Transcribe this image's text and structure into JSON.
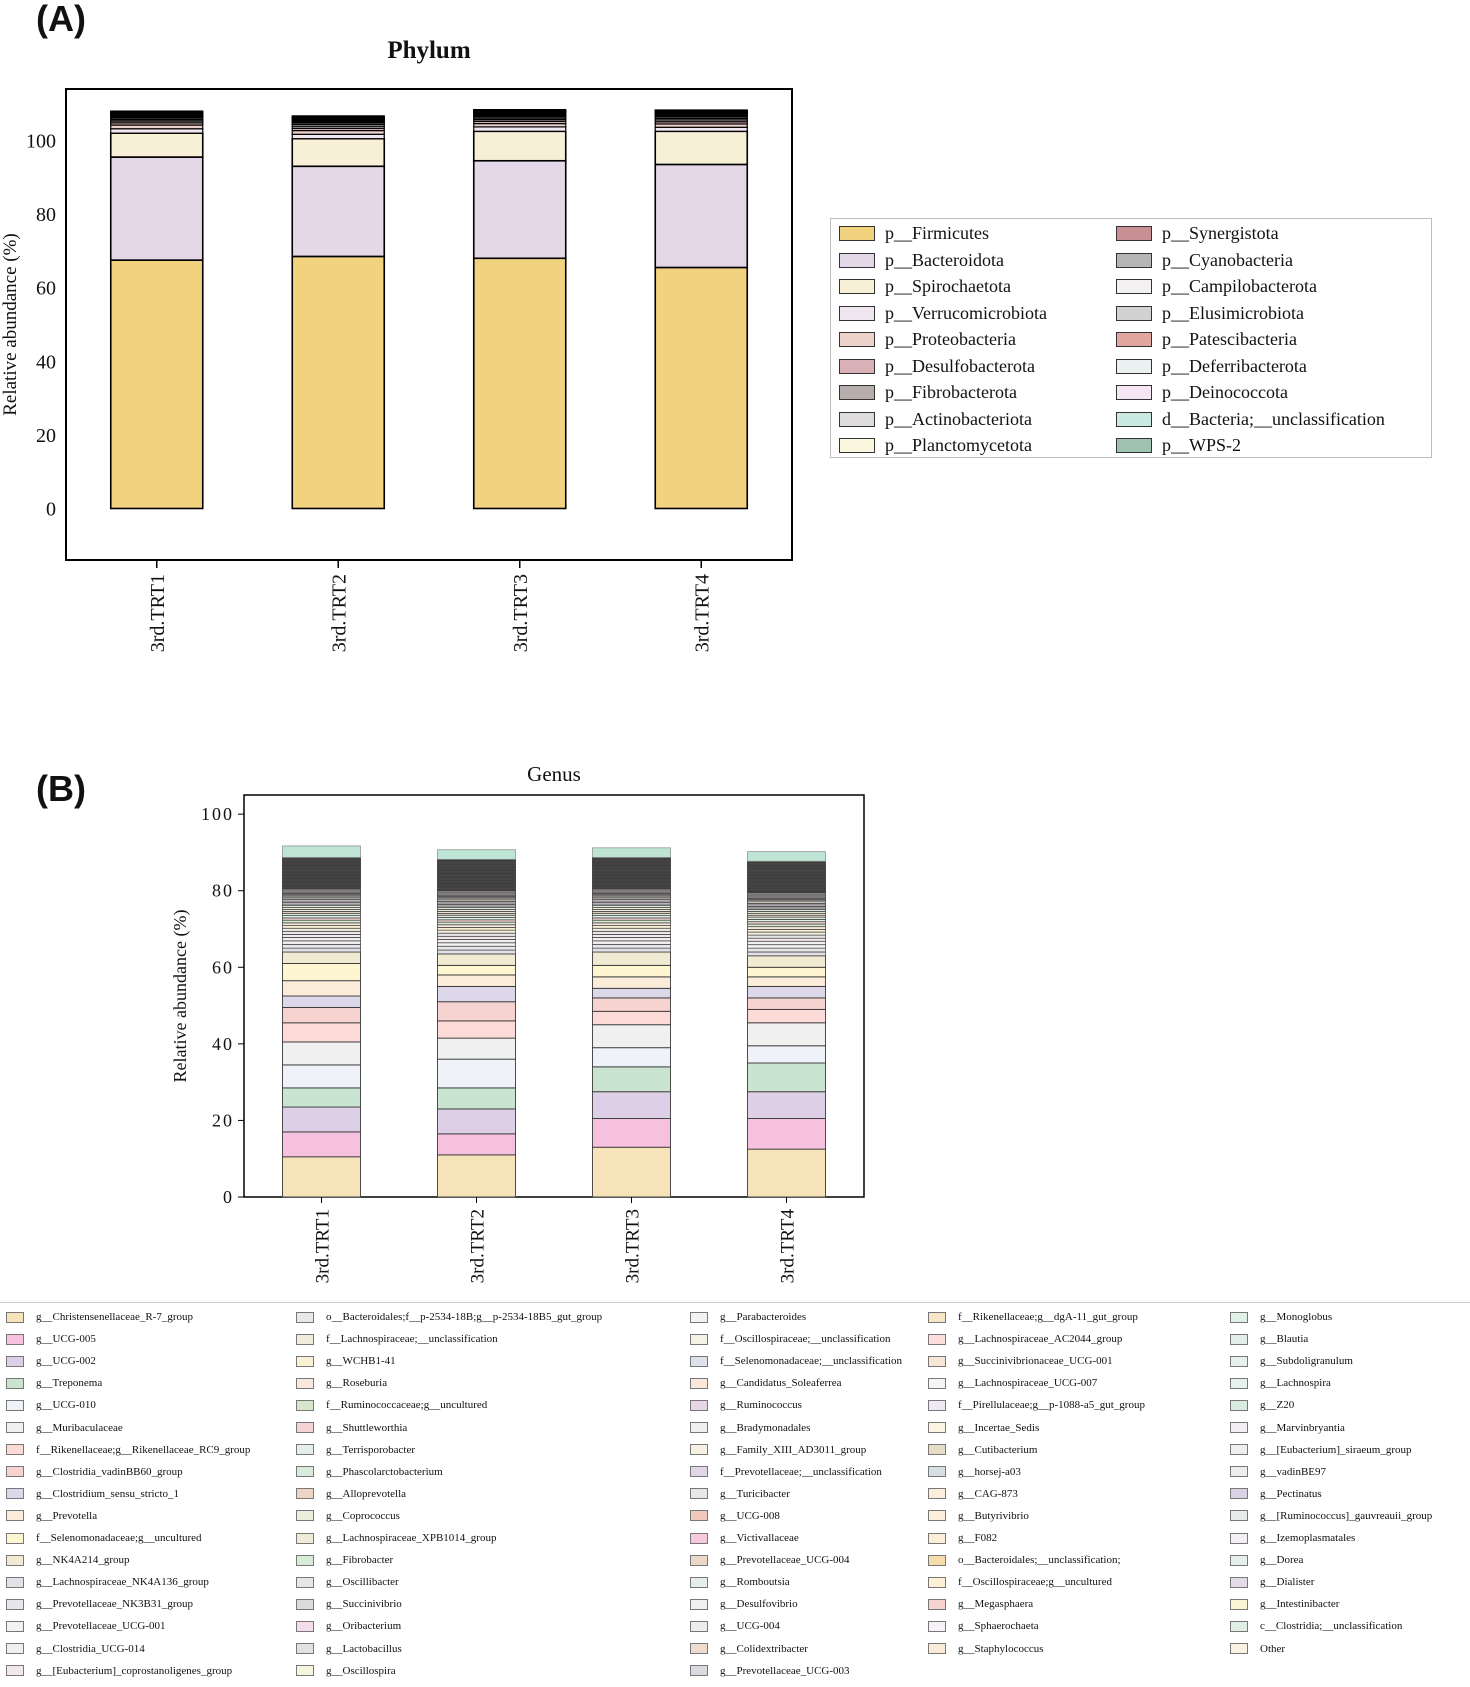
{
  "panel_a_label": "(A)",
  "panel_b_label": "(B)",
  "chart_data": [
    {
      "type": "bar",
      "stacked": true,
      "title": "Phylum",
      "ylabel": "Relative abundance (%)",
      "xlabel": "",
      "ylim": [
        -14,
        114
      ],
      "yticks": [
        0,
        20,
        40,
        60,
        80,
        100
      ],
      "categories": [
        "3rd.TRT1",
        "3rd.TRT2",
        "3rd.TRT3",
        "3rd.TRT4"
      ],
      "legend_position": "right",
      "colors": [
        "#f1d27f",
        "#e3d7e8",
        "#f7efd6",
        "#f0e6ef",
        "#ecd2ca",
        "#d9b0b6",
        "#b8aeae",
        "#dedcdc",
        "#fbf7de",
        "#c88f94",
        "#b5b5b5",
        "#f3f1f1",
        "#d2d2d2",
        "#e1a79f",
        "#eaf2f1",
        "#f5e6f3",
        "#c9e9e1",
        "#9fc2ae"
      ],
      "series": [
        {
          "name": "p__Firmicutes",
          "values": [
            67.5,
            68.5,
            68.0,
            65.5
          ]
        },
        {
          "name": "p__Bacteroidota",
          "values": [
            28.0,
            24.5,
            26.5,
            28.0
          ]
        },
        {
          "name": "p__Spirochaetota",
          "values": [
            6.5,
            7.5,
            8.0,
            9.0
          ]
        },
        {
          "name": "p__Verrucomicrobiota",
          "values": [
            1.2,
            1.2,
            1.2,
            1.1
          ]
        },
        {
          "name": "p__Proteobacteria",
          "values": [
            1.0,
            1.0,
            0.9,
            0.9
          ]
        },
        {
          "name": "p__Desulfobacterota",
          "values": [
            0.6,
            0.6,
            0.6,
            0.6
          ]
        },
        {
          "name": "p__Fibrobacterota",
          "values": [
            0.5,
            0.6,
            0.5,
            0.5
          ]
        },
        {
          "name": "p__Actinobacteriota",
          "values": [
            0.4,
            0.5,
            0.4,
            0.4
          ]
        },
        {
          "name": "p__Planctomycetota",
          "values": [
            0.4,
            0.4,
            0.4,
            0.4
          ]
        },
        {
          "name": "p__Synergistota",
          "values": [
            0.3,
            0.3,
            0.3,
            0.3
          ]
        },
        {
          "name": "p__Cyanobacteria",
          "values": [
            0.3,
            0.3,
            0.3,
            0.3
          ]
        },
        {
          "name": "p__Campilobacterota",
          "values": [
            0.2,
            0.2,
            0.2,
            0.2
          ]
        },
        {
          "name": "p__Elusimicrobiota",
          "values": [
            0.2,
            0.2,
            0.2,
            0.2
          ]
        },
        {
          "name": "p__Patescibacteria",
          "values": [
            0.2,
            0.2,
            0.2,
            0.2
          ]
        },
        {
          "name": "p__Deferribacterota",
          "values": [
            0.1,
            0.1,
            0.1,
            0.1
          ]
        },
        {
          "name": "p__Deinococcota",
          "values": [
            0.1,
            0.1,
            0.1,
            0.1
          ]
        },
        {
          "name": "d__Bacteria;__unclassification",
          "values": [
            0.3,
            0.3,
            0.3,
            0.3
          ]
        },
        {
          "name": "p__WPS-2",
          "values": [
            0.2,
            0.2,
            0.2,
            0.2
          ]
        }
      ]
    },
    {
      "type": "bar",
      "stacked": true,
      "title": "Genus",
      "ylabel": "Relative abundance (%)",
      "xlabel": "",
      "ylim": [
        0,
        105
      ],
      "yticks": [
        0,
        20,
        40,
        60,
        80,
        100
      ],
      "categories": [
        "3rd.TRT1",
        "3rd.TRT2",
        "3rd.TRT3",
        "3rd.TRT4"
      ],
      "legend_position": "bottom",
      "colors": [
        "#f6e3b9",
        "#f5c1de",
        "#ddd0e6",
        "#c9e4d0",
        "#eff2f8",
        "#f1f0f1",
        "#fcdad8",
        "#f6d3d0",
        "#dcd8ea",
        "#fbecda",
        "#fdf6d0",
        "#f0ead2",
        "#e3e0ea",
        "#e8e6ea",
        "#f3f1f1",
        "#f1f0f1",
        "#f2e7ee",
        "#e9e8e8",
        "#f2ecdd",
        "#f9f1d4",
        "#fae7dd",
        "#d5e8cf",
        "#f4d3d3",
        "#e4efe9",
        "#d8ebdd",
        "#ecd5c4",
        "#eeeedf",
        "#eeebd8",
        "#d6ebd8",
        "#e6e6e6",
        "#dcdadc",
        "#f5dcec",
        "#e2e2e2",
        "#f4f4df",
        "#f3f3f3",
        "#f4f2e6",
        "#dde1ea",
        "#fbe8dd",
        "#e7d6e8",
        "#eff0ee",
        "#f7f1e3",
        "#e1d5e7",
        "#e9e6ea",
        "#f0c9bb",
        "#f6c9de",
        "#ead8c9",
        "#e5eeea",
        "#f0f0f0",
        "#ededed",
        "#eedcd1",
        "#d8dadf",
        "#f7e6c6",
        "#fcdedd",
        "#f7e6d6",
        "#f4f6f6",
        "#f0e8f2",
        "#fcf4e5",
        "#e6dcc6",
        "#d6e0e2",
        "#fbeedd",
        "#fbeedd",
        "#fcefd9",
        "#f6dcaa",
        "#fcf0d5",
        "#f4d3d1",
        "#f7f2f8",
        "#faecd8",
        "#e2f1e8",
        "#e2ece8",
        "#e5f1ea",
        "#e6f2ed",
        "#d8eae2",
        "#f3eef2",
        "#eeeeee",
        "#eeeef0",
        "#d7d2e4",
        "#e9eaea",
        "#f2f0f2",
        "#e6f0ea",
        "#e4dbe8",
        "#fbf5d6",
        "#e1eee6",
        "#fcf2e3",
        "#bde4d4"
      ],
      "series_values": [
        [
          10.5,
          11.0,
          13.0,
          12.5
        ],
        [
          6.5,
          5.5,
          7.5,
          8.0
        ],
        [
          6.5,
          6.5,
          7.0,
          7.0
        ],
        [
          5.0,
          5.5,
          6.5,
          7.5
        ],
        [
          6.0,
          7.5,
          5.0,
          4.5
        ],
        [
          6.0,
          5.5,
          6.0,
          6.0
        ],
        [
          5.0,
          4.5,
          3.5,
          3.5
        ],
        [
          4.0,
          5.0,
          3.5,
          3.0
        ],
        [
          3.0,
          4.0,
          2.5,
          3.0
        ],
        [
          4.0,
          3.0,
          3.0,
          2.5
        ],
        [
          4.5,
          2.5,
          3.0,
          2.5
        ],
        [
          3.0,
          3.0,
          3.5,
          3.0
        ],
        [
          1.0,
          1.0,
          1.0,
          1.0
        ],
        [
          1.0,
          1.0,
          1.0,
          1.0
        ],
        [
          0.9,
          0.9,
          0.9,
          0.9
        ],
        [
          0.9,
          0.9,
          0.9,
          0.9
        ],
        [
          0.8,
          0.8,
          0.8,
          0.8
        ],
        [
          0.8,
          0.8,
          0.8,
          0.8
        ],
        [
          0.8,
          0.8,
          0.8,
          0.8
        ],
        [
          0.7,
          0.7,
          0.7,
          0.7
        ],
        [
          0.7,
          0.7,
          0.7,
          0.7
        ],
        [
          0.7,
          0.7,
          0.7,
          0.7
        ],
        [
          0.6,
          0.6,
          0.6,
          0.6
        ],
        [
          0.6,
          0.6,
          0.6,
          0.6
        ],
        [
          0.6,
          0.6,
          0.6,
          0.6
        ],
        [
          0.5,
          0.5,
          0.5,
          0.5
        ],
        [
          0.5,
          0.5,
          0.5,
          0.5
        ],
        [
          0.5,
          0.5,
          0.5,
          0.5
        ],
        [
          0.5,
          0.5,
          0.5,
          0.5
        ],
        [
          0.4,
          0.4,
          0.4,
          0.4
        ],
        [
          0.4,
          0.4,
          0.4,
          0.4
        ],
        [
          0.4,
          0.4,
          0.4,
          0.4
        ],
        [
          0.4,
          0.4,
          0.4,
          0.4
        ],
        [
          0.4,
          0.4,
          0.4,
          0.4
        ],
        [
          0.3,
          0.3,
          0.3,
          0.3
        ],
        [
          0.3,
          0.3,
          0.3,
          0.3
        ],
        [
          0.3,
          0.3,
          0.3,
          0.3
        ],
        [
          0.3,
          0.3,
          0.3,
          0.3
        ],
        [
          0.3,
          0.3,
          0.3,
          0.3
        ],
        [
          0.3,
          0.3,
          0.3,
          0.3
        ],
        [
          0.3,
          0.3,
          0.3,
          0.3
        ],
        [
          0.3,
          0.3,
          0.3,
          0.3
        ],
        [
          0.2,
          0.2,
          0.2,
          0.2
        ],
        [
          0.2,
          0.2,
          0.2,
          0.2
        ],
        [
          0.2,
          0.2,
          0.2,
          0.2
        ],
        [
          0.2,
          0.2,
          0.2,
          0.2
        ],
        [
          0.2,
          0.2,
          0.2,
          0.2
        ],
        [
          0.2,
          0.2,
          0.2,
          0.2
        ],
        [
          0.2,
          0.2,
          0.2,
          0.2
        ],
        [
          0.2,
          0.2,
          0.2,
          0.2
        ],
        [
          0.2,
          0.2,
          0.2,
          0.2
        ],
        [
          0.2,
          0.2,
          0.2,
          0.2
        ],
        [
          0.2,
          0.2,
          0.2,
          0.2
        ],
        [
          0.2,
          0.2,
          0.2,
          0.2
        ],
        [
          0.2,
          0.2,
          0.2,
          0.2
        ],
        [
          0.2,
          0.2,
          0.2,
          0.2
        ],
        [
          0.2,
          0.2,
          0.2,
          0.2
        ],
        [
          0.2,
          0.2,
          0.2,
          0.2
        ],
        [
          0.2,
          0.2,
          0.2,
          0.2
        ],
        [
          0.2,
          0.2,
          0.2,
          0.2
        ],
        [
          0.2,
          0.2,
          0.2,
          0.2
        ],
        [
          0.2,
          0.2,
          0.2,
          0.2
        ],
        [
          0.2,
          0.2,
          0.2,
          0.2
        ],
        [
          0.2,
          0.2,
          0.2,
          0.2
        ],
        [
          0.2,
          0.2,
          0.2,
          0.2
        ],
        [
          0.2,
          0.2,
          0.2,
          0.2
        ],
        [
          0.2,
          0.2,
          0.2,
          0.2
        ],
        [
          0.2,
          0.2,
          0.2,
          0.2
        ],
        [
          0.2,
          0.2,
          0.2,
          0.2
        ],
        [
          0.2,
          0.2,
          0.2,
          0.2
        ],
        [
          0.2,
          0.2,
          0.2,
          0.2
        ],
        [
          0.2,
          0.2,
          0.2,
          0.2
        ],
        [
          0.2,
          0.2,
          0.2,
          0.2
        ],
        [
          0.2,
          0.2,
          0.2,
          0.2
        ],
        [
          0.2,
          0.2,
          0.2,
          0.2
        ],
        [
          0.2,
          0.2,
          0.2,
          0.2
        ],
        [
          0.2,
          0.2,
          0.2,
          0.2
        ],
        [
          0.2,
          0.2,
          0.2,
          0.2
        ],
        [
          0.2,
          0.2,
          0.2,
          0.2
        ],
        [
          0.2,
          0.2,
          0.2,
          0.2
        ],
        [
          0.2,
          0.2,
          0.2,
          0.2
        ],
        [
          0.2,
          0.2,
          0.2,
          0.2
        ],
        [
          0.2,
          0.2,
          0.2,
          0.2
        ],
        [
          3.0,
          2.5,
          2.5,
          2.5
        ]
      ],
      "legend_columns": [
        [
          "g__Christensenellaceae_R-7_group",
          "g__UCG-005",
          "g__UCG-002",
          "g__Treponema",
          "g__UCG-010",
          "g__Muribaculaceae",
          "f__Rikenellaceae;g__Rikenellaceae_RC9_group",
          "g__Clostridia_vadinBB60_group",
          "g__Clostridium_sensu_stricto_1",
          "g__Prevotella",
          "f__Selenomonadaceae;g__uncultured",
          "g__NK4A214_group",
          "g__Lachnospiraceae_NK4A136_group",
          "g__Prevotellaceae_NK3B31_group",
          "g__Prevotellaceae_UCG-001",
          "g__Clostridia_UCG-014",
          "g__[Eubacterium]_coprostanoligenes_group"
        ],
        [
          "o__Bacteroidales;f__p-2534-18B;g__p-2534-18B5_gut_group",
          "f__Lachnospiraceae;__unclassification",
          "g__WCHB1-41",
          "g__Roseburia",
          "f__Ruminococcaceae;g__uncultured",
          "g__Shuttleworthia",
          "g__Terrisporobacter",
          "g__Phascolarctobacterium",
          "g__Alloprevotella",
          "g__Coprococcus",
          "g__Lachnospiraceae_XPB1014_group",
          "g__Fibrobacter",
          "g__Oscillibacter",
          "g__Succinivibrio",
          "g__Oribacterium",
          "g__Lactobacillus",
          "g__Oscillospira"
        ],
        [
          "g__Parabacteroides",
          "f__Oscillospiraceae;__unclassification",
          "f__Selenomonadaceae;__unclassification",
          "g__Candidatus_Soleaferrea",
          "g__Ruminococcus",
          "g__Bradymonadales",
          "g__Family_XIII_AD3011_group",
          "f__Prevotellaceae;__unclassification",
          "g__Turicibacter",
          "g__UCG-008",
          "g__Victivallaceae",
          "g__Prevotellaceae_UCG-004",
          "g__Romboutsia",
          "g__Desulfovibrio",
          "g__UCG-004",
          "g__Colidextribacter",
          "g__Prevotellaceae_UCG-003"
        ],
        [
          "f__Rikenellaceae;g__dgA-11_gut_group",
          "g__Lachnospiraceae_AC2044_group",
          "g__Succinivibrionaceae_UCG-001",
          "g__Lachnospiraceae_UCG-007",
          "f__Pirellulaceae;g__p-1088-a5_gut_group",
          "g__Incertae_Sedis",
          "g__Cutibacterium",
          "g__horsej-a03",
          "g__CAG-873",
          "g__Butyrivibrio",
          "g__F082",
          "o__Bacteroidales;__unclassification;",
          "f__Oscillospiraceae;g__uncultured",
          "g__Megasphaera",
          "g__Sphaerochaeta",
          "g__Staphylococcus"
        ],
        [
          "g__Monoglobus",
          "g__Blautia",
          "g__Subdoligranulum",
          "g__Lachnospira",
          "g__Z20",
          "g__Marvinbryantia",
          "g__[Eubacterium]_siraeum_group",
          "g__vadinBE97",
          "g__Pectinatus",
          "g__[Ruminococcus]_gauvreauii_group",
          "g__Izemoplasmatales",
          "g__Dorea",
          "g__Dialister",
          "g__Intestinibacter",
          "c__Clostridia;__unclassification",
          "Other"
        ]
      ]
    }
  ]
}
